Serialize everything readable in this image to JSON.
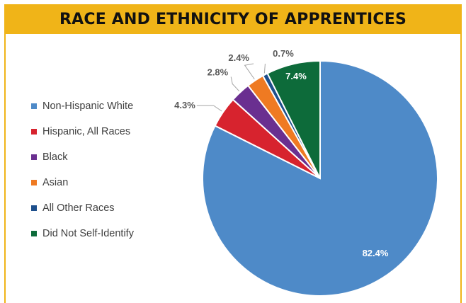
{
  "chart_data": {
    "type": "pie",
    "title": "RACE AND ETHNICITY OF APPRENTICES",
    "categories": [
      "Non-Hispanic White",
      "Hispanic, All Races",
      "Black",
      "Asian",
      "All Other Races",
      "Did Not Self-Identify"
    ],
    "values": [
      82.4,
      4.3,
      2.8,
      2.4,
      0.7,
      7.4
    ],
    "labels": [
      "82.4%",
      "4.3%",
      "2.8%",
      "2.4%",
      "0.7%",
      "7.4%"
    ],
    "colors": [
      "#4e8ac8",
      "#d7232e",
      "#6a2f90",
      "#ef7a22",
      "#1d4f8c",
      "#0d6b3a"
    ],
    "legend_position": "left",
    "start_angle_deg": 0,
    "direction": "clockwise"
  },
  "style": {
    "frame_color": "#f0b418",
    "label_light": "#ffffff",
    "label_dark": "#595959"
  }
}
